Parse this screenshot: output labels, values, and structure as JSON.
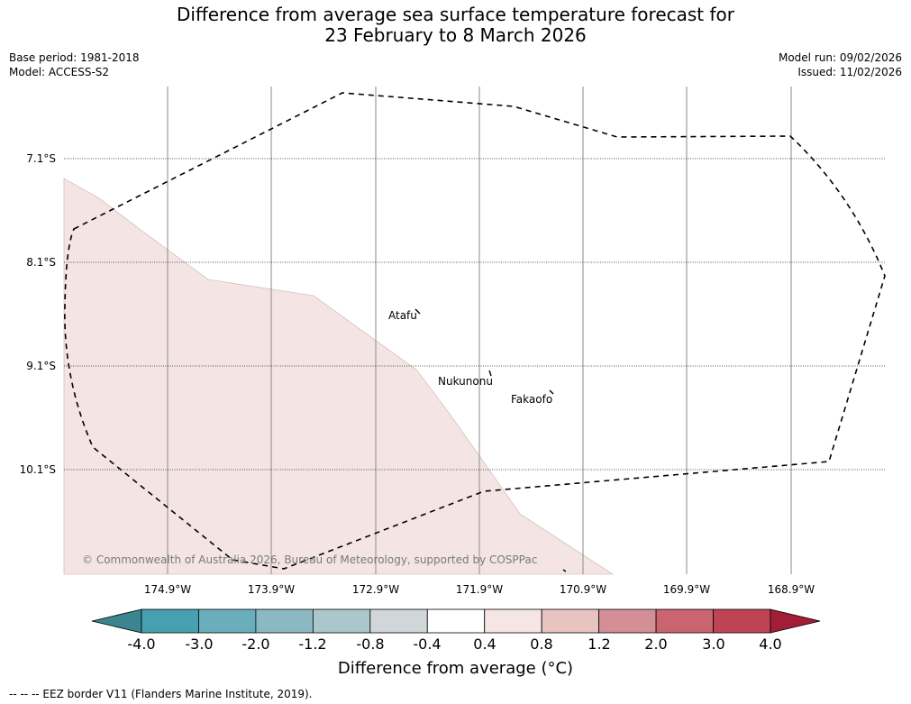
{
  "header": {
    "title_line1": "Difference from average sea surface temperature forecast for",
    "title_line2": "23 February to 8 March 2026",
    "base_period": "Base period: 1981-2018",
    "model": "Model: ACCESS-S2",
    "model_run": "Model run: 09/02/2026",
    "issued": "Issued: 11/02/2026"
  },
  "map": {
    "lat_labels": [
      "7.1°S",
      "8.1°S",
      "9.1°S",
      "10.1°S"
    ],
    "lon_labels": [
      "174.9°W",
      "173.9°W",
      "172.9°W",
      "171.9°W",
      "170.9°W",
      "169.9°W",
      "168.9°W"
    ],
    "places": [
      "Atafu",
      "Nukunonu",
      "Fakaofo"
    ],
    "copyright": "© Commonwealth of Australia 2026, Bureau of Meteorology, supported by COSPPac",
    "anomaly_fill_color": "#f4e5e4"
  },
  "colorbar": {
    "ticks": [
      "-4.0",
      "-3.0",
      "-2.0",
      "-1.2",
      "-0.8",
      "-0.4",
      "0.4",
      "0.8",
      "1.2",
      "2.0",
      "3.0",
      "4.0"
    ],
    "colors": [
      "#3b8591",
      "#46a0b0",
      "#6aaebc",
      "#8bb9c3",
      "#aac7cc",
      "#d1d6d8",
      "#ffffff",
      "#f5e6e5",
      "#e8c4c0",
      "#d48e95",
      "#ca6470",
      "#be4354",
      "#a31d37"
    ],
    "label": "Difference from average (°C)"
  },
  "footer": {
    "legend": "--  --  -- EEZ border V11 (Flanders Marine Institute, 2019)."
  }
}
